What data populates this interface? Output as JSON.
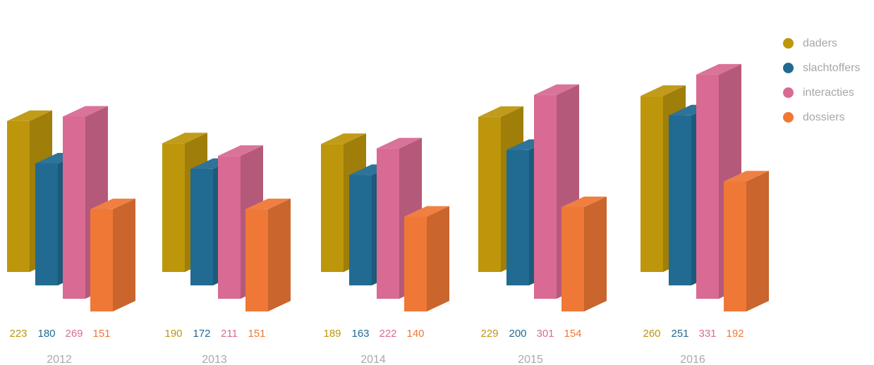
{
  "chart_data": {
    "type": "bar",
    "categories": [
      "2012",
      "2013",
      "2014",
      "2015",
      "2016"
    ],
    "series": [
      {
        "name": "daders",
        "color": "#bd960b",
        "values": [
          223,
          190,
          189,
          229,
          260
        ]
      },
      {
        "name": "slachtoffers",
        "color": "#216a91",
        "values": [
          180,
          172,
          163,
          200,
          251
        ]
      },
      {
        "name": "interacties",
        "color": "#d86a93",
        "values": [
          269,
          211,
          222,
          301,
          331
        ]
      },
      {
        "name": "dossiers",
        "color": "#ef7836",
        "values": [
          151,
          151,
          140,
          154,
          192
        ]
      }
    ],
    "legend_position": "top-right",
    "grid": false,
    "style": "3d-columns"
  }
}
